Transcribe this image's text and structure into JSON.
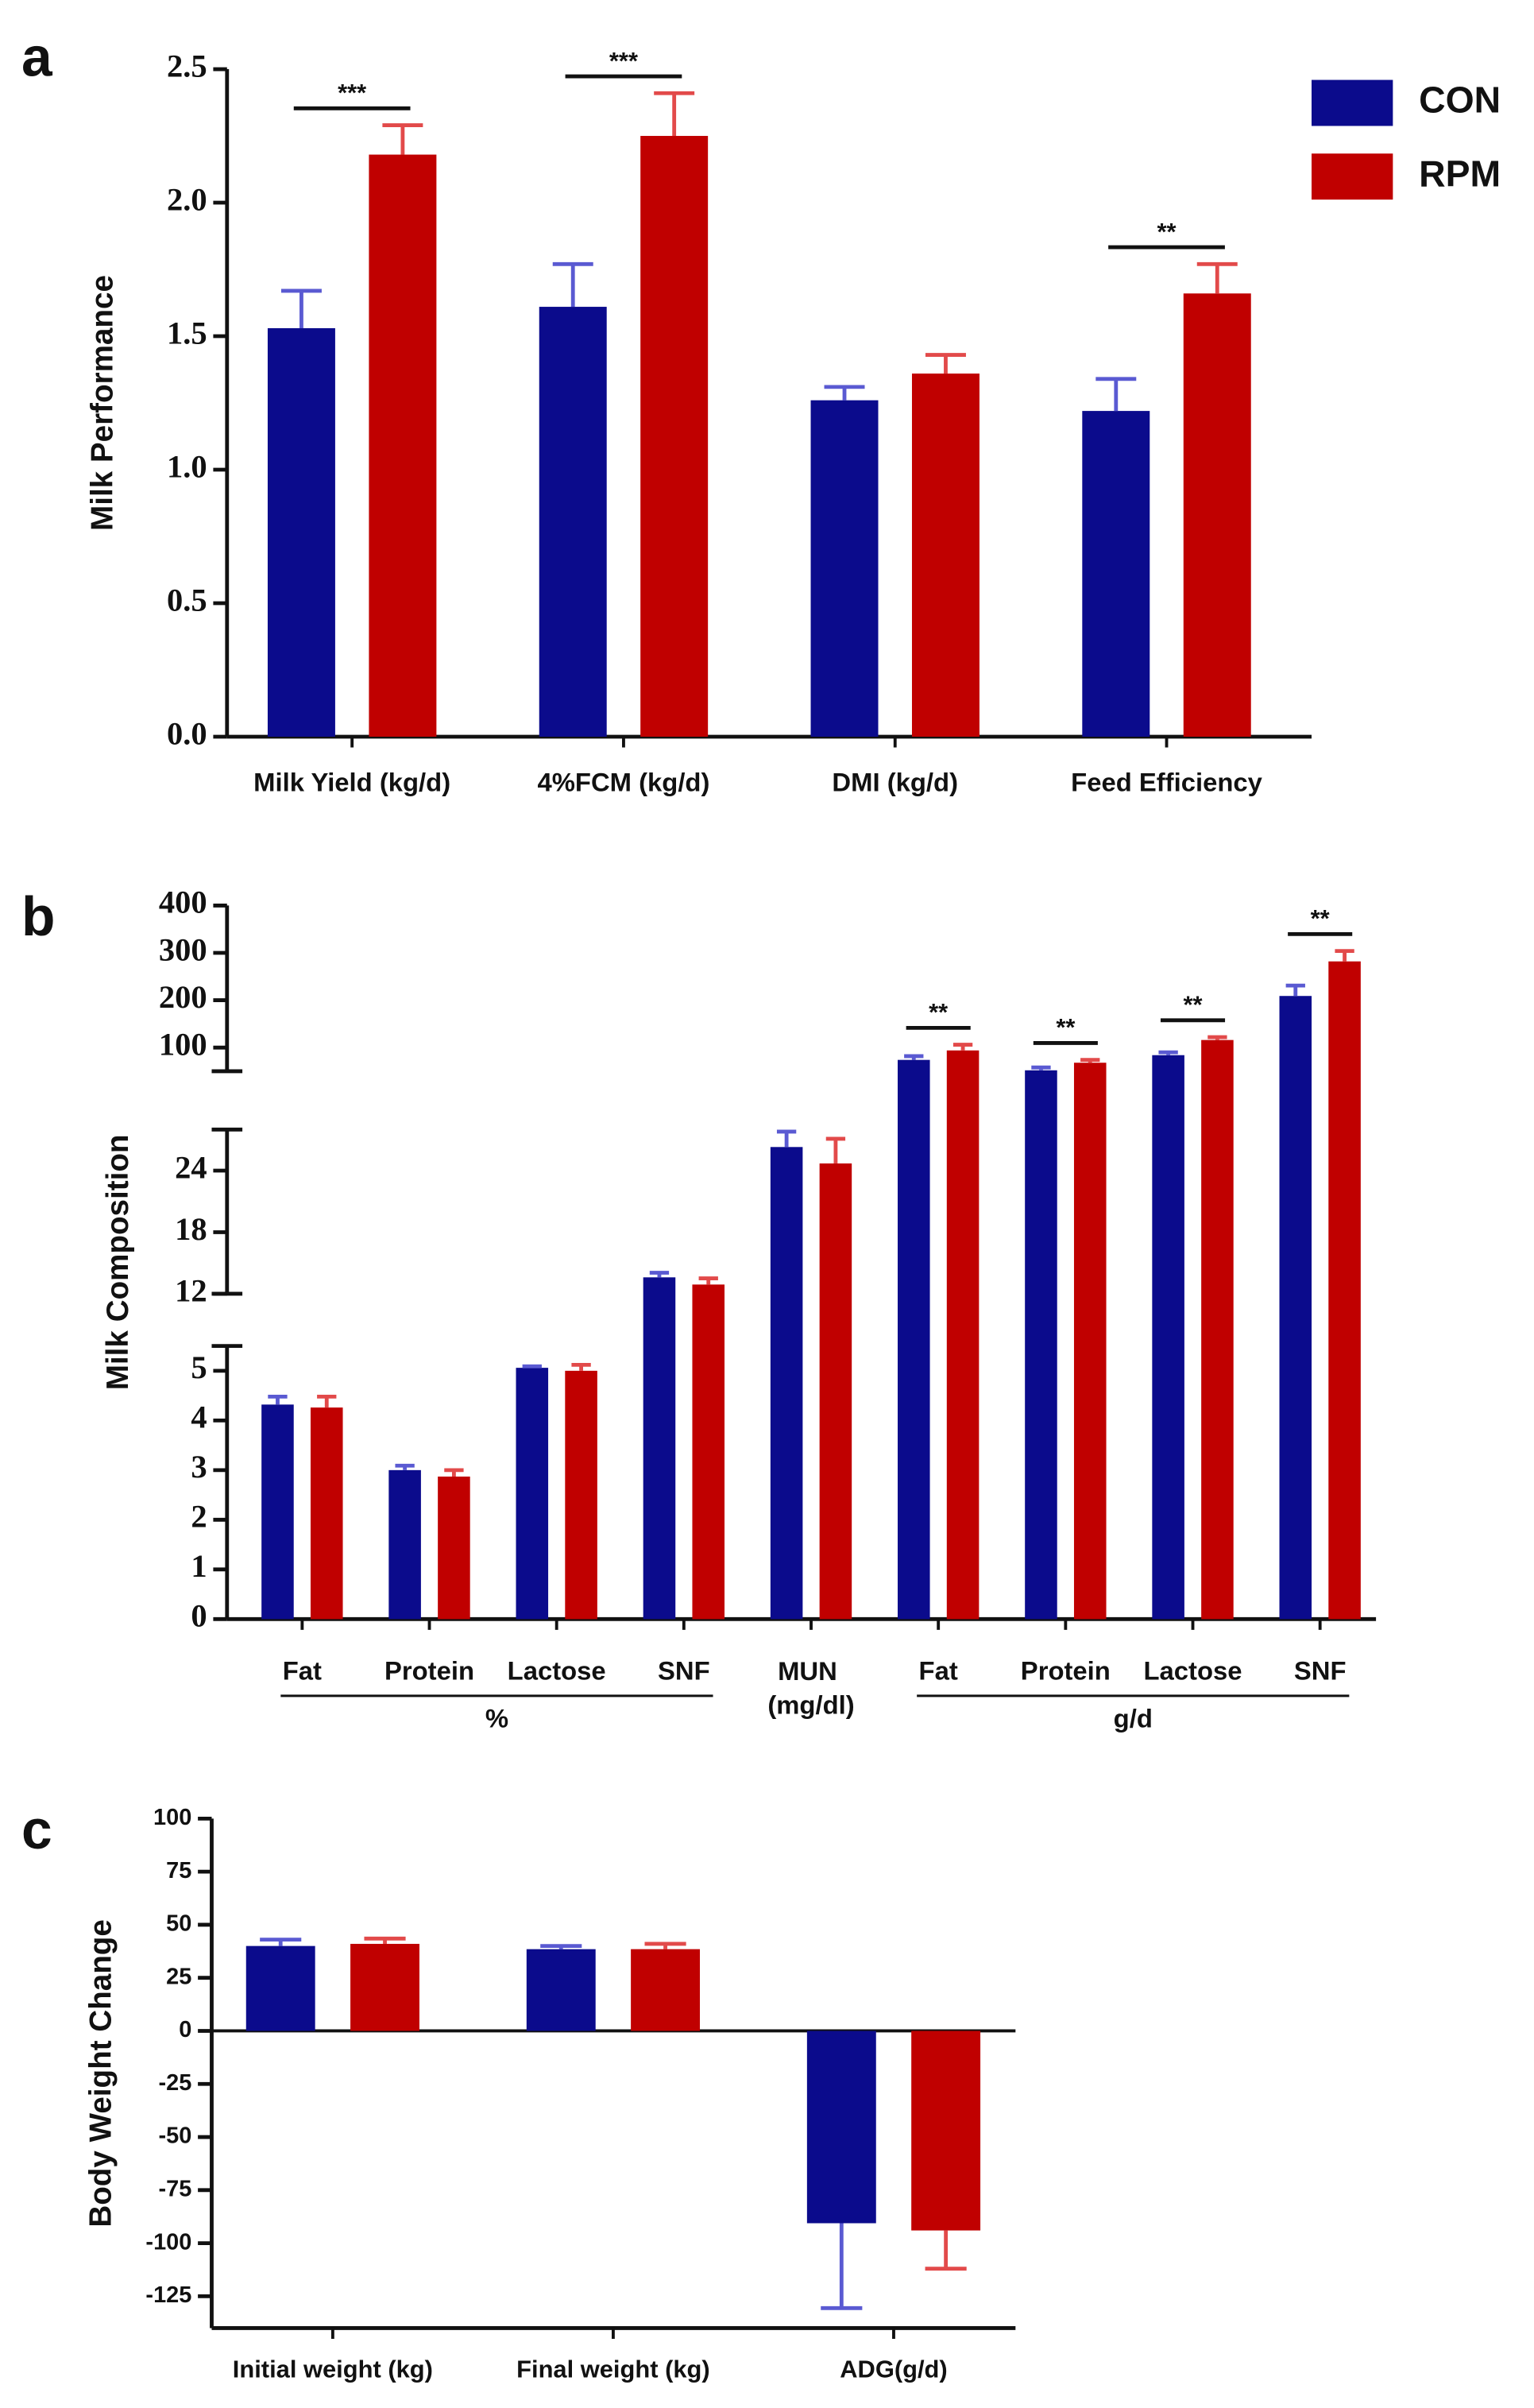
{
  "chart_data": [
    {
      "type": "bar",
      "panel": "a",
      "ylabel": "Milk Performance",
      "categories": [
        "Milk Yield (kg/d)",
        "4%FCM (kg/d)",
        "DMI (kg/d)",
        "Feed Efficiency"
      ],
      "series": [
        {
          "name": "CON",
          "color": "#0b0b8c",
          "error_color": "#5a5ad2",
          "values": [
            1.53,
            1.61,
            1.26,
            1.22
          ],
          "errors": [
            0.14,
            0.16,
            0.05,
            0.12
          ]
        },
        {
          "name": "RPM",
          "color": "#c00000",
          "error_color": "#e24a4a",
          "values": [
            2.18,
            2.25,
            1.36,
            1.66
          ],
          "errors": [
            0.11,
            0.16,
            0.07,
            0.11
          ]
        }
      ],
      "ylim": [
        0,
        2.5
      ],
      "yticks": [
        {
          "value": 0,
          "label": "0.0"
        },
        0.5,
        {
          "value": 1,
          "label": "1.0"
        },
        1.5,
        {
          "value": 2,
          "label": "2.0"
        },
        2.5
      ],
      "significance": [
        {
          "category": 0,
          "label": "***"
        },
        {
          "category": 1,
          "label": "***"
        },
        {
          "category": 3,
          "label": "**"
        }
      ],
      "legend": "top-right"
    },
    {
      "type": "bar",
      "panel": "b",
      "ylabel": "Milk Composition",
      "categories": [
        "Fat",
        "Protein",
        "Lactose",
        "SNF",
        "MUN (mg/dl)",
        "Fat",
        "Protein",
        "Lactose",
        "SNF"
      ],
      "groups": [
        {
          "label": "%",
          "first": 0,
          "last": 3
        },
        {
          "label": "g/d",
          "first": 5,
          "last": 8
        }
      ],
      "series": [
        {
          "color": "#0b0b8c",
          "error_color": "#5a5ad2",
          "values": [
            4.32,
            3.0,
            5.06,
            13.6,
            26.3,
            74,
            52,
            84,
            209
          ],
          "errors": [
            0.16,
            0.09,
            0.03,
            0.45,
            1.5,
            8,
            6,
            6,
            22
          ]
        },
        {
          "color": "#c00000",
          "error_color": "#e24a4a",
          "values": [
            4.26,
            2.87,
            5.0,
            12.9,
            24.7,
            94,
            68,
            116,
            282
          ],
          "errors": [
            0.22,
            0.13,
            0.12,
            0.6,
            2.4,
            12,
            6,
            6,
            22
          ]
        }
      ],
      "segments": [
        {
          "ylim": [
            0,
            5.5
          ],
          "yticks": [
            0,
            1,
            2,
            3,
            4,
            5
          ]
        },
        {
          "ylim": [
            12,
            28
          ],
          "yticks": [
            12,
            18,
            24
          ]
        },
        {
          "ylim": [
            50,
            400
          ],
          "yticks": [
            100,
            200,
            300,
            400
          ]
        }
      ],
      "significance": [
        {
          "category": 5,
          "label": "**"
        },
        {
          "category": 6,
          "label": "**"
        },
        {
          "category": 7,
          "label": "**"
        },
        {
          "category": 8,
          "label": "**"
        }
      ]
    },
    {
      "type": "bar",
      "panel": "c",
      "ylabel": "Body Weight Change",
      "categories": [
        "Initial weight (kg)",
        "Final weight (kg)",
        "ADG(g/d)"
      ],
      "series": [
        {
          "color": "#0b0b8c",
          "error_color": "#5a5ad2",
          "values": [
            40,
            38.5,
            -90.6
          ],
          "errors": [
            3,
            1.5,
            40
          ]
        },
        {
          "color": "#c00000",
          "error_color": "#e24a4a",
          "values": [
            41,
            38.5,
            -94
          ],
          "errors": [
            2.5,
            2.5,
            18
          ]
        }
      ],
      "ylim": [
        -140,
        100
      ],
      "yticks": [
        -125,
        -100,
        -75,
        -50,
        -25,
        0,
        25,
        50,
        75,
        100
      ]
    }
  ]
}
